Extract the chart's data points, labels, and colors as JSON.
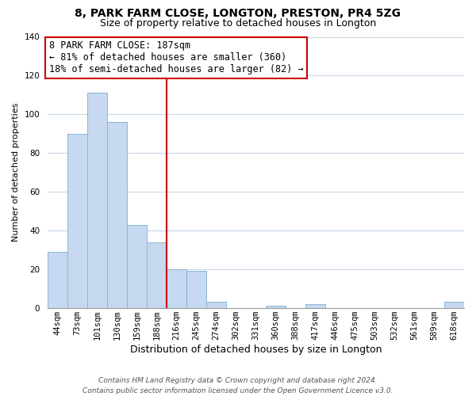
{
  "title": "8, PARK FARM CLOSE, LONGTON, PRESTON, PR4 5ZG",
  "subtitle": "Size of property relative to detached houses in Longton",
  "xlabel": "Distribution of detached houses by size in Longton",
  "ylabel": "Number of detached properties",
  "bar_labels": [
    "44sqm",
    "73sqm",
    "101sqm",
    "130sqm",
    "159sqm",
    "188sqm",
    "216sqm",
    "245sqm",
    "274sqm",
    "302sqm",
    "331sqm",
    "360sqm",
    "388sqm",
    "417sqm",
    "446sqm",
    "475sqm",
    "503sqm",
    "532sqm",
    "561sqm",
    "589sqm",
    "618sqm"
  ],
  "bar_heights": [
    29,
    90,
    111,
    96,
    43,
    34,
    20,
    19,
    3,
    0,
    0,
    1,
    0,
    2,
    0,
    0,
    0,
    0,
    0,
    0,
    3
  ],
  "bar_color": "#c6d9f0",
  "bar_edge_color": "#8db4d9",
  "vline_x": 5.5,
  "vline_color": "#cc0000",
  "ylim": [
    0,
    140
  ],
  "annotation_line1": "8 PARK FARM CLOSE: 187sqm",
  "annotation_line2": "← 81% of detached houses are smaller (360)",
  "annotation_line3": "18% of semi-detached houses are larger (82) →",
  "annotation_box_color": "#ffffff",
  "annotation_border_color": "#cc0000",
  "footer_line1": "Contains HM Land Registry data © Crown copyright and database right 2024.",
  "footer_line2": "Contains public sector information licensed under the Open Government Licence v3.0.",
  "background_color": "#ffffff",
  "grid_color": "#c8d8e8",
  "title_fontsize": 10,
  "subtitle_fontsize": 9,
  "ylabel_fontsize": 8,
  "xlabel_fontsize": 9,
  "tick_fontsize": 7.5,
  "annotation_fontsize": 8.5,
  "footer_fontsize": 6.5
}
